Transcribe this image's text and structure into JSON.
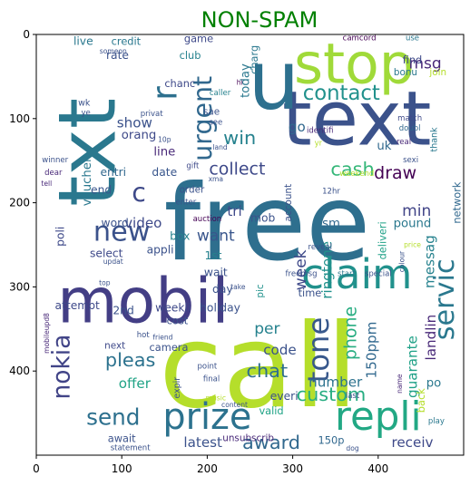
{
  "chart_data": {
    "type": "wordcloud",
    "title": "NON-SPAM",
    "title_color": "#008000",
    "xlim": [
      0,
      500
    ],
    "ylim": [
      500,
      0
    ],
    "xticks": [
      0,
      100,
      200,
      300,
      400
    ],
    "yticks": [
      0,
      100,
      200,
      300,
      400
    ],
    "words": [
      {
        "text": "call",
        "x": 260,
        "y": 395,
        "size": 135,
        "color": "#b5de2b"
      },
      {
        "text": "free",
        "x": 270,
        "y": 225,
        "size": 122,
        "color": "#2e6f8e"
      },
      {
        "text": "txt",
        "x": 60,
        "y": 140,
        "size": 92,
        "color": "#2a788e",
        "rotate": -90
      },
      {
        "text": "text",
        "x": 375,
        "y": 100,
        "size": 88,
        "color": "#3b528b"
      },
      {
        "text": "u",
        "x": 278,
        "y": 55,
        "size": 95,
        "color": "#2d708e"
      },
      {
        "text": "stop",
        "x": 372,
        "y": 35,
        "size": 65,
        "color": "#a0da39"
      },
      {
        "text": "mobil",
        "x": 125,
        "y": 318,
        "size": 72,
        "color": "#433e85"
      },
      {
        "text": "claim",
        "x": 375,
        "y": 285,
        "size": 48,
        "color": "#21918c"
      },
      {
        "text": "repli",
        "x": 400,
        "y": 455,
        "size": 46,
        "color": "#22a884"
      },
      {
        "text": "prize",
        "x": 200,
        "y": 455,
        "size": 42,
        "color": "#2c728e"
      },
      {
        "text": "urgent",
        "x": 195,
        "y": 100,
        "size": 30,
        "color": "#31688e",
        "rotate": -90
      },
      {
        "text": "contact",
        "x": 357,
        "y": 70,
        "size": 24,
        "color": "#21918c"
      },
      {
        "text": "new",
        "x": 100,
        "y": 235,
        "size": 32,
        "color": "#3b528b"
      },
      {
        "text": "servic",
        "x": 478,
        "y": 315,
        "size": 32,
        "color": "#2a788e",
        "rotate": -90
      },
      {
        "text": "tone",
        "x": 330,
        "y": 375,
        "size": 34,
        "color": "#38588c",
        "rotate": -90
      },
      {
        "text": "send",
        "x": 90,
        "y": 455,
        "size": 26,
        "color": "#2d708e"
      },
      {
        "text": "nokia",
        "x": 30,
        "y": 395,
        "size": 28,
        "color": "#414487",
        "rotate": -90
      },
      {
        "text": "collect",
        "x": 235,
        "y": 160,
        "size": 20,
        "color": "#3e4989"
      },
      {
        "text": "cash",
        "x": 370,
        "y": 160,
        "size": 22,
        "color": "#35b779"
      },
      {
        "text": "win",
        "x": 238,
        "y": 123,
        "size": 22,
        "color": "#26828e"
      },
      {
        "text": "r",
        "x": 150,
        "y": 70,
        "size": 40,
        "color": "#2d708e",
        "rotate": -90
      },
      {
        "text": "c",
        "x": 120,
        "y": 188,
        "size": 30,
        "color": "#3e4989"
      },
      {
        "text": "custom",
        "x": 345,
        "y": 428,
        "size": 22,
        "color": "#27ad81"
      },
      {
        "text": "award",
        "x": 275,
        "y": 485,
        "size": 22,
        "color": "#31688e"
      },
      {
        "text": "pleas",
        "x": 110,
        "y": 387,
        "size": 22,
        "color": "#2c728e"
      },
      {
        "text": "chat",
        "x": 270,
        "y": 400,
        "size": 22,
        "color": "#2e6f8e"
      },
      {
        "text": "phone",
        "x": 368,
        "y": 355,
        "size": 20,
        "color": "#27ad81",
        "rotate": -90
      },
      {
        "text": "per",
        "x": 270,
        "y": 350,
        "size": 18,
        "color": "#26828e"
      },
      {
        "text": "draw",
        "x": 420,
        "y": 165,
        "size": 20,
        "color": "#440154"
      },
      {
        "text": "week",
        "x": 310,
        "y": 280,
        "size": 18,
        "color": "#3e4989",
        "rotate": -90
      },
      {
        "text": "msg",
        "x": 455,
        "y": 35,
        "size": 18,
        "color": "#482878"
      },
      {
        "text": "min",
        "x": 445,
        "y": 210,
        "size": 18,
        "color": "#414487"
      },
      {
        "text": "messag",
        "x": 460,
        "y": 270,
        "size": 16,
        "color": "#26828e",
        "rotate": -90
      },
      {
        "text": "want",
        "x": 210,
        "y": 240,
        "size": 18,
        "color": "#39568c"
      },
      {
        "text": "video",
        "x": 125,
        "y": 224,
        "size": 16,
        "color": "#3e4989"
      },
      {
        "text": "show",
        "x": 115,
        "y": 105,
        "size": 16,
        "color": "#3b528b"
      },
      {
        "text": "go",
        "x": 305,
        "y": 110,
        "size": 16,
        "color": "#31688e"
      },
      {
        "text": "line",
        "x": 150,
        "y": 140,
        "size": 14,
        "color": "#482878"
      },
      {
        "text": "today",
        "x": 245,
        "y": 55,
        "size": 14,
        "color": "#2a788e",
        "rotate": -90
      },
      {
        "text": "150ppm",
        "x": 392,
        "y": 375,
        "size": 16,
        "color": "#31688e",
        "rotate": -90
      },
      {
        "text": "ringtone",
        "x": 340,
        "y": 280,
        "size": 16,
        "color": "#21918c",
        "rotate": -90
      },
      {
        "text": "offer",
        "x": 115,
        "y": 415,
        "size": 16,
        "color": "#20a386"
      },
      {
        "text": "code",
        "x": 285,
        "y": 375,
        "size": 16,
        "color": "#3b528b"
      },
      {
        "text": "number",
        "x": 350,
        "y": 413,
        "size": 16,
        "color": "#2c728e"
      },
      {
        "text": "latest",
        "x": 195,
        "y": 485,
        "size": 16,
        "color": "#3b528b"
      },
      {
        "text": "receiv",
        "x": 440,
        "y": 485,
        "size": 16,
        "color": "#3e4989"
      },
      {
        "text": "guarante",
        "x": 440,
        "y": 395,
        "size": 16,
        "color": "#1fa187",
        "rotate": -90
      },
      {
        "text": "landlin",
        "x": 462,
        "y": 360,
        "size": 16,
        "color": "#482878",
        "rotate": -90
      },
      {
        "text": "po",
        "x": 465,
        "y": 415,
        "size": 14,
        "color": "#2a788e"
      },
      {
        "text": "tri",
        "x": 232,
        "y": 210,
        "size": 16,
        "color": "#3e4989"
      },
      {
        "text": "orang",
        "x": 120,
        "y": 120,
        "size": 14,
        "color": "#3e4989"
      },
      {
        "text": "voucher",
        "x": 60,
        "y": 175,
        "size": 14,
        "color": "#2a788e",
        "rotate": -90
      },
      {
        "text": "entri",
        "x": 90,
        "y": 164,
        "size": 13,
        "color": "#31688e"
      },
      {
        "text": "date",
        "x": 150,
        "y": 164,
        "size": 13,
        "color": "#39568c"
      },
      {
        "text": "end",
        "x": 76,
        "y": 185,
        "size": 13,
        "color": "#39568c"
      },
      {
        "text": "word",
        "x": 92,
        "y": 224,
        "size": 13,
        "color": "#3b528b"
      },
      {
        "text": "box",
        "x": 168,
        "y": 240,
        "size": 13,
        "color": "#26828e"
      },
      {
        "text": "appli",
        "x": 145,
        "y": 256,
        "size": 13,
        "color": "#3b528b"
      },
      {
        "text": "select",
        "x": 82,
        "y": 260,
        "size": 13,
        "color": "#3e4989"
      },
      {
        "text": "poli",
        "x": 28,
        "y": 240,
        "size": 13,
        "color": "#3e4989",
        "rotate": -90
      },
      {
        "text": "sm",
        "x": 345,
        "y": 225,
        "size": 14,
        "color": "#31688e"
      },
      {
        "text": "pound",
        "x": 440,
        "y": 225,
        "size": 14,
        "color": "#2a788e"
      },
      {
        "text": "deliveri",
        "x": 405,
        "y": 245,
        "size": 12,
        "color": "#1fa187",
        "rotate": -90
      },
      {
        "text": "network",
        "x": 492,
        "y": 200,
        "size": 12,
        "color": "#31688e",
        "rotate": -90
      },
      {
        "text": "uk",
        "x": 407,
        "y": 133,
        "size": 14,
        "color": "#31688e"
      },
      {
        "text": "mob",
        "x": 265,
        "y": 218,
        "size": 13,
        "color": "#3b528b"
      },
      {
        "text": "account",
        "x": 295,
        "y": 200,
        "size": 11,
        "color": "#3b528b",
        "rotate": -90
      },
      {
        "text": "1st",
        "x": 207,
        "y": 263,
        "size": 13,
        "color": "#26828e"
      },
      {
        "text": "wait",
        "x": 210,
        "y": 283,
        "size": 13,
        "color": "#3b528b"
      },
      {
        "text": "day",
        "x": 218,
        "y": 303,
        "size": 13,
        "color": "#3b528b"
      },
      {
        "text": "pic",
        "x": 262,
        "y": 305,
        "size": 11,
        "color": "#21918c",
        "rotate": -90
      },
      {
        "text": "weekli",
        "x": 160,
        "y": 325,
        "size": 13,
        "color": "#3e4989"
      },
      {
        "text": "holiday",
        "x": 215,
        "y": 325,
        "size": 13,
        "color": "#3b528b"
      },
      {
        "text": "cost",
        "x": 165,
        "y": 340,
        "size": 12,
        "color": "#3b528b"
      },
      {
        "text": "2nd",
        "x": 102,
        "y": 328,
        "size": 13,
        "color": "#3b528b"
      },
      {
        "text": "attempt",
        "x": 48,
        "y": 322,
        "size": 13,
        "color": "#3e4989"
      },
      {
        "text": "time",
        "x": 320,
        "y": 307,
        "size": 12,
        "color": "#3b528b"
      },
      {
        "text": "camera",
        "x": 155,
        "y": 372,
        "size": 12,
        "color": "#3b528b"
      },
      {
        "text": "next",
        "x": 92,
        "y": 370,
        "size": 11,
        "color": "#3e4989"
      },
      {
        "text": "everi",
        "x": 290,
        "y": 430,
        "size": 13,
        "color": "#3b528b"
      },
      {
        "text": "valid",
        "x": 275,
        "y": 447,
        "size": 12,
        "color": "#20a386"
      },
      {
        "text": "await",
        "x": 100,
        "y": 480,
        "size": 12,
        "color": "#3b528b"
      },
      {
        "text": "unsubscrib",
        "x": 248,
        "y": 480,
        "size": 11,
        "color": "#482878"
      },
      {
        "text": "150p",
        "x": 345,
        "y": 482,
        "size": 12,
        "color": "#31688e"
      },
      {
        "text": "back",
        "x": 450,
        "y": 435,
        "size": 12,
        "color": "#b5de2b",
        "rotate": -90
      },
      {
        "text": "live",
        "x": 55,
        "y": 8,
        "size": 13,
        "color": "#2a788e"
      },
      {
        "text": "credit",
        "x": 105,
        "y": 8,
        "size": 12,
        "color": "#2a788e"
      },
      {
        "text": "rate",
        "x": 95,
        "y": 25,
        "size": 13,
        "color": "#3b528b"
      },
      {
        "text": "game",
        "x": 190,
        "y": 5,
        "size": 12,
        "color": "#3e4989"
      },
      {
        "text": "club",
        "x": 180,
        "y": 25,
        "size": 12,
        "color": "#26828e"
      },
      {
        "text": "chanc",
        "x": 168,
        "y": 58,
        "size": 12,
        "color": "#3e4989"
      },
      {
        "text": "charg",
        "x": 255,
        "y": 30,
        "size": 12,
        "color": "#2a788e",
        "rotate": -90
      },
      {
        "text": "find",
        "x": 440,
        "y": 30,
        "size": 12,
        "color": "#3e4989"
      },
      {
        "text": "bonu",
        "x": 432,
        "y": 45,
        "size": 11,
        "color": "#2a788e"
      },
      {
        "text": "join",
        "x": 470,
        "y": 45,
        "size": 11,
        "color": "#b5de2b"
      },
      {
        "text": "camcord",
        "x": 378,
        "y": 5,
        "size": 9,
        "color": "#440154"
      },
      {
        "text": "use",
        "x": 440,
        "y": 5,
        "size": 9,
        "color": "#2a788e"
      },
      {
        "text": "wk",
        "x": 56,
        "y": 82,
        "size": 10,
        "color": "#3b528b"
      },
      {
        "text": "ye",
        "x": 58,
        "y": 94,
        "size": 9,
        "color": "#3b528b"
      },
      {
        "text": "someon",
        "x": 90,
        "y": 20,
        "size": 8,
        "color": "#3b528b"
      },
      {
        "text": "privat",
        "x": 135,
        "y": 95,
        "size": 9,
        "color": "#3b528b"
      },
      {
        "text": "sae",
        "x": 205,
        "y": 92,
        "size": 11,
        "color": "#3b528b"
      },
      {
        "text": "see",
        "x": 210,
        "y": 105,
        "size": 9,
        "color": "#3b528b"
      },
      {
        "text": "caller",
        "x": 215,
        "y": 70,
        "size": 9,
        "color": "#26828e"
      },
      {
        "text": "hi",
        "x": 238,
        "y": 57,
        "size": 8,
        "color": "#440154"
      },
      {
        "text": "identifi",
        "x": 332,
        "y": 115,
        "size": 9,
        "color": "#482878"
      },
      {
        "text": "match",
        "x": 437,
        "y": 100,
        "size": 9,
        "color": "#3e4989"
      },
      {
        "text": "doubl",
        "x": 437,
        "y": 112,
        "size": 9,
        "color": "#31688e"
      },
      {
        "text": "real",
        "x": 430,
        "y": 128,
        "size": 9,
        "color": "#482878"
      },
      {
        "text": "thank",
        "x": 466,
        "y": 125,
        "size": 10,
        "color": "#2a788e",
        "rotate": -90
      },
      {
        "text": "yr",
        "x": 330,
        "y": 130,
        "size": 9,
        "color": "#b5de2b"
      },
      {
        "text": "winner",
        "x": 22,
        "y": 150,
        "size": 9,
        "color": "#3b528b"
      },
      {
        "text": "dear",
        "x": 20,
        "y": 165,
        "size": 9,
        "color": "#482878"
      },
      {
        "text": "tell",
        "x": 12,
        "y": 177,
        "size": 8,
        "color": "#482878"
      },
      {
        "text": "gift",
        "x": 183,
        "y": 157,
        "size": 9,
        "color": "#3e4989"
      },
      {
        "text": "xma",
        "x": 210,
        "y": 172,
        "size": 8,
        "color": "#3b528b"
      },
      {
        "text": "order",
        "x": 182,
        "y": 185,
        "size": 11,
        "color": "#3b528b"
      },
      {
        "text": "enter",
        "x": 175,
        "y": 200,
        "size": 9,
        "color": "#3b528b"
      },
      {
        "text": "auction",
        "x": 200,
        "y": 220,
        "size": 9,
        "color": "#440154"
      },
      {
        "text": "updat",
        "x": 90,
        "y": 270,
        "size": 8,
        "color": "#3b528b"
      },
      {
        "text": "sexi",
        "x": 438,
        "y": 150,
        "size": 9,
        "color": "#3b528b"
      },
      {
        "text": "weekend",
        "x": 375,
        "y": 166,
        "size": 9,
        "color": "#b5de2b"
      },
      {
        "text": "12hr",
        "x": 345,
        "y": 187,
        "size": 9,
        "color": "#3b528b"
      },
      {
        "text": "reveal",
        "x": 332,
        "y": 253,
        "size": 9,
        "color": "#3b528b"
      },
      {
        "text": "price",
        "x": 440,
        "y": 250,
        "size": 8,
        "color": "#b5de2b"
      },
      {
        "text": "colour",
        "x": 428,
        "y": 270,
        "size": 8,
        "color": "#3b528b",
        "rotate": -90
      },
      {
        "text": "freemsg",
        "x": 310,
        "y": 285,
        "size": 9,
        "color": "#3b528b"
      },
      {
        "text": "start",
        "x": 363,
        "y": 285,
        "size": 9,
        "color": "#2a788e"
      },
      {
        "text": "special",
        "x": 400,
        "y": 285,
        "size": 9,
        "color": "#3b528b"
      },
      {
        "text": "take",
        "x": 236,
        "y": 300,
        "size": 8,
        "color": "#3b528b"
      },
      {
        "text": "top",
        "x": 80,
        "y": 295,
        "size": 8,
        "color": "#3b528b"
      },
      {
        "text": "mobileupd8",
        "x": 12,
        "y": 355,
        "size": 8,
        "color": "#482878",
        "rotate": -90
      },
      {
        "text": "hot",
        "x": 125,
        "y": 358,
        "size": 9,
        "color": "#3b528b"
      },
      {
        "text": "friend",
        "x": 148,
        "y": 360,
        "size": 8,
        "color": "#3b528b"
      },
      {
        "text": "point",
        "x": 200,
        "y": 395,
        "size": 9,
        "color": "#3b528b"
      },
      {
        "text": "final",
        "x": 205,
        "y": 410,
        "size": 9,
        "color": "#3b528b"
      },
      {
        "text": "expir",
        "x": 165,
        "y": 420,
        "size": 10,
        "color": "#3b528b",
        "rotate": -90
      },
      {
        "text": "music",
        "x": 210,
        "y": 432,
        "size": 8,
        "color": "#b5de2b"
      },
      {
        "text": "content",
        "x": 232,
        "y": 440,
        "size": 8,
        "color": "#3b528b"
      },
      {
        "text": "last",
        "x": 370,
        "y": 430,
        "size": 9,
        "color": "#3b528b"
      },
      {
        "text": "name",
        "x": 425,
        "y": 415,
        "size": 8,
        "color": "#482878",
        "rotate": -90
      },
      {
        "text": "play",
        "x": 468,
        "y": 460,
        "size": 9,
        "color": "#2a788e"
      },
      {
        "text": "statement",
        "x": 110,
        "y": 492,
        "size": 9,
        "color": "#3b528b"
      },
      {
        "text": "dog",
        "x": 370,
        "y": 492,
        "size": 8,
        "color": "#3b528b"
      },
      {
        "text": "10p",
        "x": 150,
        "y": 125,
        "size": 8,
        "color": "#3b528b"
      },
      {
        "text": "land",
        "x": 215,
        "y": 134,
        "size": 8,
        "color": "#3b528b"
      }
    ]
  }
}
